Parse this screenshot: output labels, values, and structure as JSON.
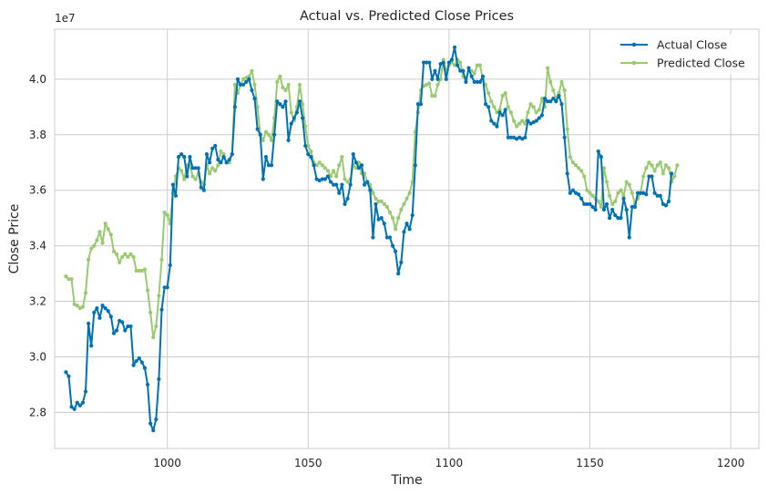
{
  "chart_data": {
    "type": "line",
    "title": "Actual vs. Predicted Close Prices",
    "xlabel": "Time",
    "ylabel": "Close Price",
    "y_multiplier_label": "1e7",
    "y_scale": 10000000,
    "xlim": [
      960,
      1210
    ],
    "ylim": [
      26700000,
      41800000
    ],
    "x_ticks": [
      1000,
      1050,
      1100,
      1150,
      1200
    ],
    "y_ticks": [
      2.8,
      3.0,
      3.2,
      3.4,
      3.6,
      3.8,
      4.0
    ],
    "grid": true,
    "legend_position": "top-right",
    "x_start": 964,
    "series": [
      {
        "name": "Actual Close",
        "color": "#0072B2",
        "values": [
          29.45,
          29.3,
          28.2,
          28.12,
          28.35,
          28.25,
          28.35,
          28.75,
          31.2,
          30.4,
          31.6,
          31.75,
          31.4,
          31.85,
          31.75,
          31.65,
          31.45,
          30.85,
          30.95,
          31.3,
          31.25,
          30.95,
          31.1,
          31.1,
          29.7,
          29.85,
          29.95,
          29.8,
          29.6,
          29.0,
          27.6,
          27.35,
          27.75,
          29.2,
          31.7,
          32.5,
          32.5,
          33.3,
          36.2,
          35.8,
          37.2,
          37.3,
          37.2,
          36.5,
          37.2,
          36.8,
          36.8,
          36.8,
          36.1,
          36.0,
          37.3,
          37.0,
          37.5,
          37.6,
          37.1,
          37.0,
          37.2,
          37.0,
          37.1,
          37.3,
          39.0,
          40.0,
          39.8,
          39.8,
          39.9,
          40.0,
          39.6,
          39.3,
          38.2,
          38.0,
          36.4,
          37.2,
          36.9,
          36.9,
          38.0,
          39.2,
          39.1,
          39.0,
          39.2,
          37.8,
          38.4,
          38.6,
          38.8,
          39.2,
          38.6,
          37.6,
          37.3,
          37.2,
          36.9,
          36.4,
          36.35,
          36.4,
          36.4,
          36.5,
          36.3,
          36.2,
          36.2,
          35.9,
          36.2,
          35.5,
          35.7,
          36.2,
          37.3,
          37.0,
          36.8,
          36.9,
          36.2,
          36.3,
          36.0,
          34.3,
          35.5,
          34.95,
          35.0,
          34.8,
          34.3,
          34.3,
          34.0,
          33.8,
          33.0,
          33.4,
          34.5,
          34.8,
          34.6,
          35.1,
          36.9,
          39.1,
          39.1,
          40.6,
          40.6,
          40.6,
          40.0,
          40.3,
          40.0,
          40.55,
          40.6,
          40.0,
          40.6,
          40.7,
          41.15,
          40.5,
          40.3,
          40.3,
          39.9,
          40.4,
          40.1,
          39.9,
          39.9,
          39.9,
          40.1,
          39.1,
          39.0,
          38.5,
          38.4,
          38.3,
          38.8,
          38.7,
          38.9,
          37.9,
          37.9,
          37.9,
          37.85,
          37.9,
          37.85,
          37.9,
          38.5,
          38.4,
          38.45,
          38.5,
          38.6,
          38.7,
          39.3,
          39.2,
          39.2,
          39.3,
          39.2,
          39.4,
          39.1,
          37.9,
          36.6,
          35.9,
          36.0,
          35.9,
          35.85,
          35.7,
          35.5,
          35.5,
          35.5,
          35.4,
          35.3,
          37.4,
          37.2,
          35.3,
          35.5,
          35.0,
          35.3,
          35.1,
          35.0,
          35.0,
          35.7,
          35.3,
          34.3,
          35.4,
          35.4,
          35.9,
          35.9,
          35.9,
          35.85,
          36.5,
          36.5,
          35.9,
          35.8,
          35.8,
          35.5,
          35.45,
          35.6,
          36.6
        ]
      },
      {
        "name": "Predicted Close",
        "color": "#9ACA70",
        "values": [
          32.9,
          32.8,
          32.8,
          31.9,
          31.85,
          31.75,
          31.8,
          32.3,
          33.5,
          33.9,
          34.0,
          34.2,
          34.5,
          34.1,
          34.8,
          34.6,
          34.4,
          33.8,
          33.7,
          33.4,
          33.6,
          33.7,
          33.6,
          33.7,
          33.6,
          33.1,
          33.1,
          33.1,
          33.15,
          32.4,
          31.6,
          30.7,
          31.1,
          32.2,
          33.5,
          35.2,
          35.1,
          34.8,
          35.9,
          36.5,
          36.8,
          36.7,
          36.4,
          36.9,
          36.9,
          36.5,
          36.4,
          36.6,
          36.3,
          36.2,
          36.9,
          36.6,
          36.8,
          36.7,
          36.9,
          37.4,
          37.3,
          37.0,
          37.0,
          37.3,
          39.8,
          39.5,
          39.8,
          40.0,
          40.05,
          40.1,
          40.3,
          39.8,
          39.0,
          38.0,
          37.8,
          38.1,
          38.0,
          37.8,
          38.6,
          39.9,
          40.1,
          39.7,
          39.6,
          39.8,
          38.8,
          38.5,
          39.0,
          39.8,
          39.1,
          38.3,
          37.6,
          37.4,
          37.0,
          36.9,
          37.0,
          36.9,
          36.8,
          36.7,
          36.5,
          36.7,
          36.5,
          36.9,
          37.2,
          36.4,
          36.3,
          36.4,
          36.9,
          36.8,
          37.0,
          36.6,
          36.6,
          36.3,
          36.2,
          35.9,
          35.7,
          35.6,
          35.6,
          35.5,
          35.4,
          35.2,
          35.0,
          34.6,
          35.0,
          35.3,
          35.5,
          35.7,
          35.9,
          36.3,
          38.1,
          38.8,
          39.6,
          39.75,
          39.8,
          39.85,
          39.4,
          39.4,
          39.8,
          40.0,
          40.7,
          40.3,
          40.5,
          40.6,
          40.5,
          40.7,
          40.6,
          40.1,
          40.0,
          40.3,
          40.3,
          40.2,
          40.5,
          40.5,
          40.0,
          39.8,
          39.5,
          39.2,
          39.0,
          38.8,
          38.9,
          39.4,
          39.5,
          39.0,
          38.8,
          38.5,
          38.3,
          38.4,
          38.5,
          38.4,
          38.8,
          39.1,
          39.0,
          38.8,
          38.9,
          39.3,
          39.0,
          40.4,
          39.9,
          39.6,
          39.3,
          39.5,
          39.9,
          39.6,
          38.2,
          37.2,
          37.0,
          36.9,
          36.8,
          36.7,
          36.5,
          36.0,
          35.9,
          35.8,
          35.7,
          35.6,
          35.4,
          36.8,
          36.3,
          35.8,
          35.5,
          35.6,
          35.9,
          36.0,
          35.8,
          36.3,
          36.2,
          35.9,
          35.5,
          35.7,
          35.9,
          36.5,
          36.8,
          37.0,
          36.9,
          36.7,
          36.9,
          37.0,
          36.6,
          36.9,
          36.8,
          36.3,
          36.5,
          36.9
        ]
      }
    ]
  }
}
